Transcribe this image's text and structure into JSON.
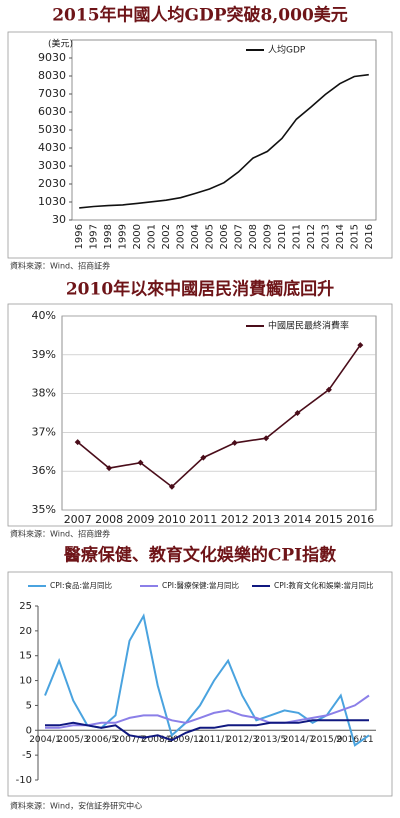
{
  "chart_data": [
    {
      "type": "line",
      "title": "2015年中國人均GDP突破8,000美元",
      "unit_label": "(美元)",
      "categories": [
        "1996",
        "1997",
        "1998",
        "1999",
        "2000",
        "2001",
        "2002",
        "2003",
        "2004",
        "2005",
        "2006",
        "2007",
        "2008",
        "2009",
        "2010",
        "2011",
        "2012",
        "2013",
        "2014",
        "2015",
        "2016"
      ],
      "series": [
        {
          "name": "人均GDP",
          "color": "#111111",
          "values": [
            700,
            780,
            830,
            870,
            950,
            1040,
            1130,
            1270,
            1500,
            1750,
            2100,
            2700,
            3470,
            3840,
            4560,
            5630,
            6300,
            7000,
            7600,
            8000,
            8100
          ]
        }
      ],
      "ylim": [
        30,
        9030
      ],
      "yticks": [
        30,
        1030,
        2030,
        3030,
        4030,
        5030,
        6030,
        7030,
        8030,
        9030
      ],
      "grid": false,
      "legend": "top-right",
      "source": "資料來源：Wind、招商証券"
    },
    {
      "type": "line",
      "title": "2010年以來中國居民消費觸底回升",
      "categories": [
        "2007",
        "2008",
        "2009",
        "2010",
        "2011",
        "2012",
        "2013",
        "2014",
        "2015",
        "2016"
      ],
      "series": [
        {
          "name": "中國居民最終消費率",
          "color": "#4a0d1a",
          "values": [
            36.75,
            36.08,
            36.22,
            35.6,
            36.35,
            36.73,
            36.85,
            37.5,
            38.1,
            39.25
          ]
        }
      ],
      "ylim": [
        35,
        40
      ],
      "yticks": [
        {
          "value": 35,
          "label": "35%"
        },
        {
          "value": 36,
          "label": "36%"
        },
        {
          "value": 37,
          "label": "37%"
        },
        {
          "value": 38,
          "label": "38%"
        },
        {
          "value": 39,
          "label": "39%"
        },
        {
          "value": 40,
          "label": "40%"
        }
      ],
      "grid": true,
      "markers": true,
      "legend": "top-right",
      "source": "資料來源：Wind、招商證券"
    },
    {
      "type": "line",
      "title": "醫療保健、教育文化娛樂的CPI指數",
      "categories": [
        "2004/1",
        null,
        "2005/3",
        null,
        "2006/5",
        null,
        "2007/7",
        null,
        "2008/9",
        null,
        "2009/11",
        null,
        "2011/1",
        null,
        "2012/3",
        null,
        "2013/5",
        null,
        "2014/7",
        null,
        "2015/9",
        null,
        "2016/11",
        null
      ],
      "series": [
        {
          "name": "CPI:食品:當月同比",
          "color": "#4aa3df",
          "values": [
            7,
            14,
            6,
            1,
            0.5,
            3,
            18,
            23,
            9,
            -1,
            1.5,
            5,
            10,
            14,
            7,
            2,
            3,
            4,
            3.5,
            1.5,
            3,
            7,
            -3,
            -1
          ]
        },
        {
          "name": "CPI:醫療保健:當月同比",
          "color": "#8b7fe8",
          "values": [
            0.5,
            0.5,
            1,
            1,
            1.5,
            1.5,
            2.5,
            3,
            3,
            2,
            1.5,
            2.5,
            3.5,
            4,
            3,
            2.5,
            1.5,
            1.5,
            2,
            2.5,
            3,
            4,
            5,
            7
          ]
        },
        {
          "name": "CPI:教育文化和娛樂:當月同比",
          "color": "#101880",
          "values": [
            1,
            1,
            1.5,
            1,
            0.5,
            1,
            -1,
            -1.5,
            -1,
            -2,
            -0.5,
            0.5,
            0.5,
            1,
            1,
            1,
            1.5,
            1.5,
            1.5,
            2,
            2,
            2,
            2,
            2
          ]
        }
      ],
      "ylim": [
        -10,
        25
      ],
      "yticks": [
        -10,
        -5,
        0,
        5,
        10,
        15,
        20,
        25
      ],
      "grid": false,
      "legend": "top",
      "source": "資料來源：Wind，安信証券研究中心"
    }
  ]
}
